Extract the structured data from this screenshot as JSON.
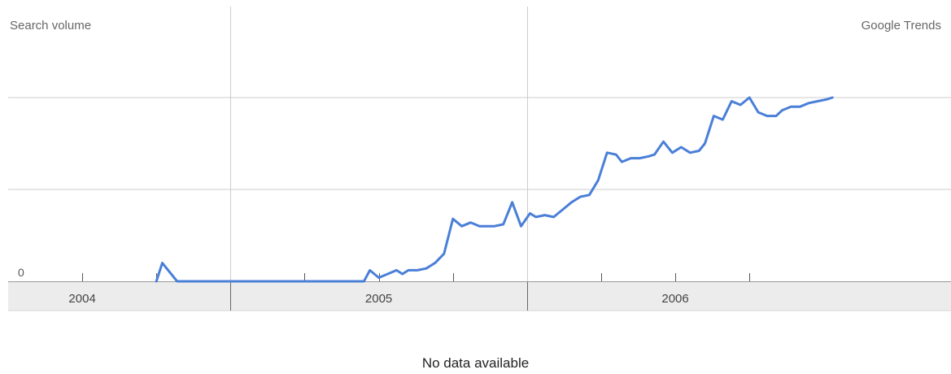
{
  "header": {
    "left_label": "Search volume",
    "right_label": "Google Trends"
  },
  "footer": {
    "status_text": "No data available"
  },
  "colors": {
    "series": "#4a7fd8",
    "grid": "#cccccc",
    "axis_band": "#ececec",
    "axis_text": "#444444"
  },
  "chart_data": {
    "type": "line",
    "x_axis": {
      "start": 2003.75,
      "end": 2006.93,
      "boundaries": [
        2004.5,
        2005.5
      ],
      "labels": [
        {
          "text": "2004",
          "at": 2004.0
        },
        {
          "text": "2005",
          "at": 2005.0
        },
        {
          "text": "2006",
          "at": 2006.0
        }
      ],
      "ticks": [
        2004.0,
        2004.25,
        2004.75,
        2005.0,
        2005.25,
        2005.75,
        2006.0,
        2006.25
      ]
    },
    "y_axis": {
      "zero_label": "0",
      "ylim": [
        0,
        1.0
      ],
      "gridlines": [
        0.5,
        1.0
      ]
    },
    "series": [
      {
        "x": [
          2004.25,
          2004.27,
          2004.32,
          2004.35,
          2004.4,
          2004.5,
          2004.6,
          2004.7,
          2004.8,
          2004.9,
          2004.95,
          2004.97,
          2005.0,
          2005.03,
          2005.06,
          2005.08,
          2005.1,
          2005.13,
          2005.16,
          2005.19,
          2005.22,
          2005.25,
          2005.28,
          2005.31,
          2005.34,
          2005.36,
          2005.39,
          2005.42,
          2005.45,
          2005.48,
          2005.51,
          2005.53,
          2005.56,
          2005.59,
          2005.62,
          2005.65,
          2005.68,
          2005.71,
          2005.74,
          2005.77,
          2005.8,
          2005.82,
          2005.85,
          2005.88,
          2005.91,
          2005.93,
          2005.96,
          2005.99,
          2006.02,
          2006.05,
          2006.08,
          2006.1,
          2006.13,
          2006.16,
          2006.19,
          2006.22,
          2006.25,
          2006.28,
          2006.31,
          2006.34,
          2006.36,
          2006.39,
          2006.42,
          2006.45,
          2006.48,
          2006.51,
          2006.53
        ],
        "y": [
          0,
          0.1,
          0,
          0,
          0,
          0,
          0,
          0,
          0,
          0,
          0,
          0.06,
          0.02,
          0.04,
          0.06,
          0.04,
          0.06,
          0.06,
          0.07,
          0.1,
          0.15,
          0.34,
          0.3,
          0.32,
          0.3,
          0.3,
          0.3,
          0.31,
          0.43,
          0.3,
          0.37,
          0.35,
          0.36,
          0.35,
          0.39,
          0.43,
          0.46,
          0.47,
          0.55,
          0.7,
          0.69,
          0.65,
          0.67,
          0.67,
          0.68,
          0.69,
          0.76,
          0.7,
          0.73,
          0.7,
          0.71,
          0.75,
          0.9,
          0.88,
          0.98,
          0.96,
          1.0,
          0.92,
          0.9,
          0.9,
          0.93,
          0.95,
          0.95,
          0.97,
          0.98,
          0.99,
          1.0
        ]
      }
    ]
  }
}
